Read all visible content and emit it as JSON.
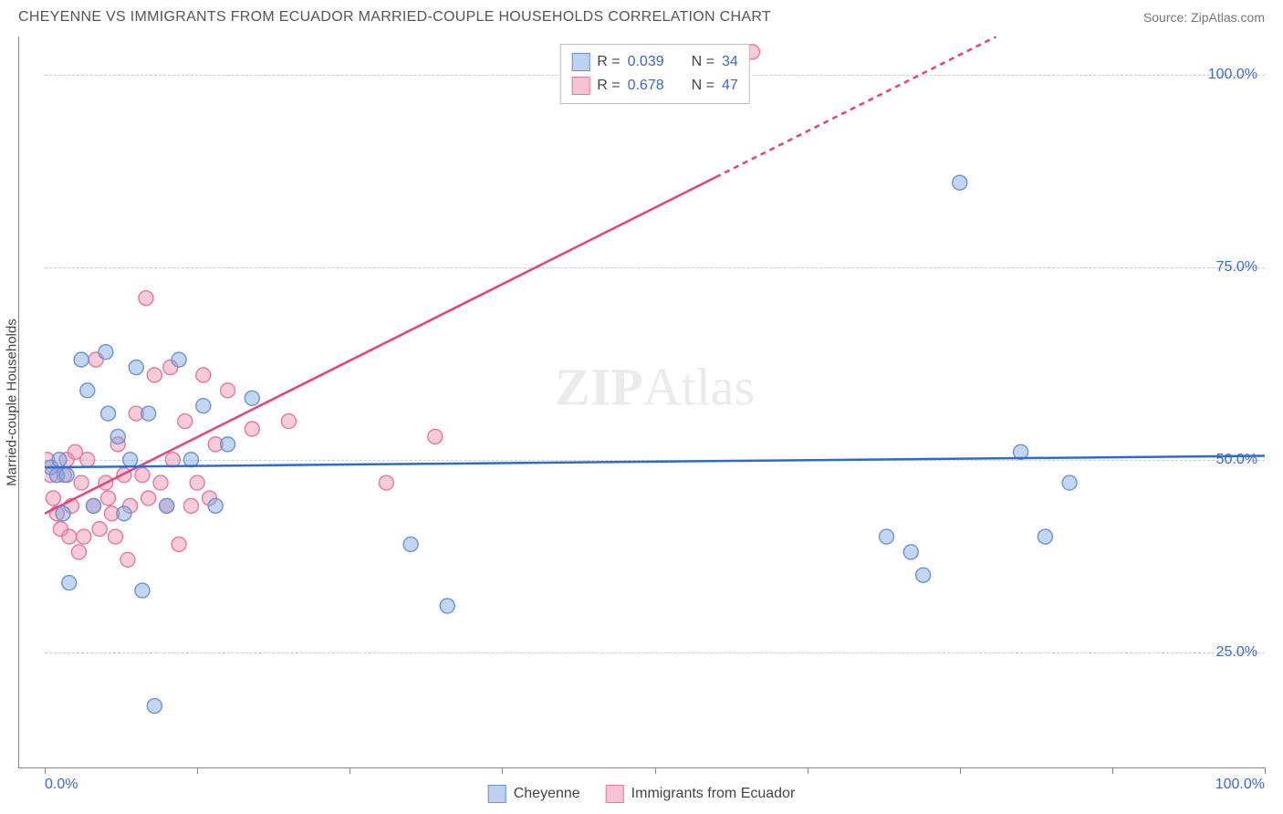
{
  "header": {
    "title": "CHEYENNE VS IMMIGRANTS FROM ECUADOR MARRIED-COUPLE HOUSEHOLDS CORRELATION CHART",
    "source": "Source: ZipAtlas.com"
  },
  "ylabel": "Married-couple Households",
  "watermark_a": "ZIP",
  "watermark_b": "Atlas",
  "chart": {
    "type": "scatter",
    "xlim": [
      0,
      100
    ],
    "ylim": [
      10,
      105
    ],
    "background_color": "#ffffff",
    "grid_color": "#cccccc",
    "axis_color": "#888888",
    "tick_label_color": "#3a68c8",
    "axis_label_color": "#444444",
    "tick_label_fontsize": 16,
    "marker_radius": 8,
    "marker_stroke_width": 1.4,
    "regression_line_width": 2.5,
    "y_ticks": [
      25,
      50,
      75,
      100
    ],
    "y_tick_labels": [
      "25.0%",
      "50.0%",
      "75.0%",
      "100.0%"
    ],
    "x_ticks": [
      0,
      12.5,
      25,
      37.5,
      50,
      62.5,
      75,
      87.5,
      100
    ],
    "x_axis_labels": [
      {
        "pos": 0,
        "label": "0.0%"
      },
      {
        "pos": 100,
        "label": "100.0%"
      }
    ]
  },
  "series": {
    "blue": {
      "name": "Cheyenne",
      "color_fill": "rgba(120,165,225,0.45)",
      "color_stroke": "#6a93d0",
      "swatch_fill": "#bcd2ef",
      "swatch_border": "#6a93d0",
      "line_color": "#2d6bd0",
      "R": "0.039",
      "N": "34",
      "regression": {
        "x1": 0,
        "y1": 49,
        "x2": 100,
        "y2": 50.5,
        "dashed_from_x": null
      },
      "points": [
        [
          0.5,
          49
        ],
        [
          1,
          48
        ],
        [
          1.2,
          50
        ],
        [
          1.5,
          43
        ],
        [
          1.8,
          48
        ],
        [
          2,
          34
        ],
        [
          3,
          63
        ],
        [
          3.5,
          59
        ],
        [
          4,
          44
        ],
        [
          5,
          64
        ],
        [
          5.2,
          56
        ],
        [
          6,
          53
        ],
        [
          6.5,
          43
        ],
        [
          7,
          50
        ],
        [
          7.5,
          62
        ],
        [
          8,
          33
        ],
        [
          8.5,
          56
        ],
        [
          9,
          18
        ],
        [
          10,
          44
        ],
        [
          11,
          63
        ],
        [
          12,
          50
        ],
        [
          13,
          57
        ],
        [
          14,
          44
        ],
        [
          15,
          52
        ],
        [
          17,
          58
        ],
        [
          30,
          39
        ],
        [
          33,
          31
        ],
        [
          69,
          40
        ],
        [
          71,
          38
        ],
        [
          72,
          35
        ],
        [
          75,
          86
        ],
        [
          80,
          51
        ],
        [
          82,
          40
        ],
        [
          84,
          47
        ]
      ]
    },
    "pink": {
      "name": "Immigrants from Ecuador",
      "color_fill": "rgba(240,140,170,0.45)",
      "color_stroke": "#e577a0",
      "swatch_fill": "#f6c2d4",
      "swatch_border": "#e577a0",
      "line_color": "#e8407e",
      "R": "0.678",
      "N": "47",
      "regression": {
        "x1": 0,
        "y1": 43,
        "x2": 78,
        "y2": 105,
        "dashed_from_x": 55
      },
      "points": [
        [
          0.2,
          50
        ],
        [
          0.5,
          48
        ],
        [
          0.7,
          45
        ],
        [
          1,
          43
        ],
        [
          1.3,
          41
        ],
        [
          1.6,
          48
        ],
        [
          1.8,
          50
        ],
        [
          2,
          40
        ],
        [
          2.2,
          44
        ],
        [
          2.5,
          51
        ],
        [
          2.8,
          38
        ],
        [
          3,
          47
        ],
        [
          3.2,
          40
        ],
        [
          3.5,
          50
        ],
        [
          4,
          44
        ],
        [
          4.2,
          63
        ],
        [
          4.5,
          41
        ],
        [
          5,
          47
        ],
        [
          5.2,
          45
        ],
        [
          5.5,
          43
        ],
        [
          5.8,
          40
        ],
        [
          6,
          52
        ],
        [
          6.5,
          48
        ],
        [
          6.8,
          37
        ],
        [
          7,
          44
        ],
        [
          7.5,
          56
        ],
        [
          8,
          48
        ],
        [
          8.3,
          71
        ],
        [
          8.5,
          45
        ],
        [
          9,
          61
        ],
        [
          9.5,
          47
        ],
        [
          10,
          44
        ],
        [
          10.3,
          62
        ],
        [
          10.5,
          50
        ],
        [
          11,
          39
        ],
        [
          11.5,
          55
        ],
        [
          12,
          44
        ],
        [
          12.5,
          47
        ],
        [
          13,
          61
        ],
        [
          13.5,
          45
        ],
        [
          14,
          52
        ],
        [
          15,
          59
        ],
        [
          17,
          54
        ],
        [
          20,
          55
        ],
        [
          28,
          47
        ],
        [
          32,
          53
        ],
        [
          58,
          103
        ]
      ]
    }
  },
  "legend_top": {
    "r_label": "R =",
    "n_label": "N ="
  },
  "legend_bottom": {
    "blue_label": "Cheyenne",
    "pink_label": "Immigrants from Ecuador"
  }
}
